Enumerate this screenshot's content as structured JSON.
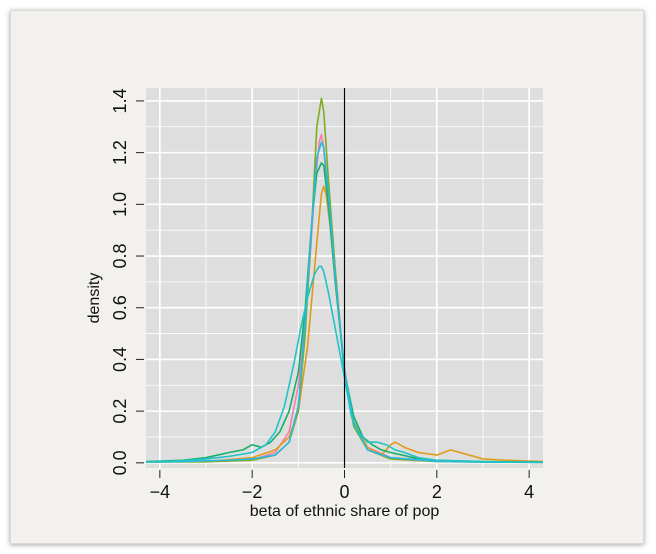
{
  "chart_data": {
    "type": "line",
    "xlabel": "beta of ethnic share of pop",
    "ylabel": "density",
    "xlim": [
      -4.3,
      4.3
    ],
    "ylim": [
      -0.02,
      1.45
    ],
    "xticks": [
      -4,
      -2,
      0,
      2,
      4
    ],
    "xtick_labels": [
      "−4",
      "−2",
      "0",
      "2",
      "4"
    ],
    "yticks": [
      0.0,
      0.2,
      0.4,
      0.6,
      0.8,
      1.0,
      1.2,
      1.4
    ],
    "ytick_labels": [
      "0.0",
      "0.2",
      "0.4",
      "0.6",
      "0.8",
      "1.0",
      "1.2",
      "1.4"
    ],
    "grid": true,
    "panel_background": "#dedede",
    "vertical_line_at_x": 0,
    "series": [
      {
        "color": "#f77fa8",
        "x": [
          -4.3,
          -3,
          -2,
          -1.5,
          -1.2,
          -1.0,
          -0.8,
          -0.65,
          -0.55,
          -0.5,
          -0.45,
          -0.35,
          -0.2,
          0,
          0.2,
          0.5,
          1,
          2,
          3,
          4.3
        ],
        "y": [
          0.005,
          0.005,
          0.012,
          0.04,
          0.12,
          0.3,
          0.65,
          1.05,
          1.24,
          1.27,
          1.22,
          1.0,
          0.7,
          0.36,
          0.16,
          0.06,
          0.02,
          0.008,
          0.004,
          0.002
        ]
      },
      {
        "color": "#e09b1a",
        "x": [
          -4.3,
          -3,
          -2,
          -1.5,
          -1.2,
          -1.0,
          -0.8,
          -0.6,
          -0.5,
          -0.45,
          -0.4,
          -0.3,
          -0.2,
          0,
          0.2,
          0.5,
          0.8,
          1.0,
          1.1,
          1.3,
          1.6,
          2.0,
          2.3,
          2.7,
          3,
          3.5,
          4.3
        ],
        "y": [
          0.004,
          0.005,
          0.02,
          0.05,
          0.1,
          0.2,
          0.45,
          0.85,
          1.04,
          1.07,
          1.04,
          0.9,
          0.7,
          0.36,
          0.16,
          0.06,
          0.03,
          0.07,
          0.08,
          0.06,
          0.04,
          0.03,
          0.05,
          0.03,
          0.015,
          0.01,
          0.005
        ]
      },
      {
        "color": "#7fad1f",
        "x": [
          -4.3,
          -3,
          -2,
          -1.5,
          -1.2,
          -1.0,
          -0.85,
          -0.7,
          -0.6,
          -0.5,
          -0.45,
          -0.35,
          -0.2,
          0,
          0.2,
          0.5,
          1,
          2,
          3,
          4.3
        ],
        "y": [
          0.003,
          0.004,
          0.01,
          0.03,
          0.08,
          0.2,
          0.5,
          0.95,
          1.3,
          1.41,
          1.36,
          1.1,
          0.75,
          0.34,
          0.14,
          0.05,
          0.015,
          0.005,
          0.003,
          0.002
        ]
      },
      {
        "color": "#16b06a",
        "x": [
          -4.3,
          -3.5,
          -3,
          -2.5,
          -2.2,
          -2,
          -1.8,
          -1.6,
          -1.4,
          -1.2,
          -1.0,
          -0.85,
          -0.7,
          -0.6,
          -0.5,
          -0.45,
          -0.35,
          -0.2,
          0,
          0.2,
          0.4,
          0.6,
          0.8,
          1,
          1.5,
          2,
          3,
          4.3
        ],
        "y": [
          0.005,
          0.01,
          0.02,
          0.04,
          0.05,
          0.07,
          0.06,
          0.08,
          0.12,
          0.2,
          0.35,
          0.6,
          0.95,
          1.12,
          1.16,
          1.15,
          1.0,
          0.7,
          0.35,
          0.18,
          0.1,
          0.07,
          0.05,
          0.04,
          0.02,
          0.01,
          0.005,
          0.003
        ]
      },
      {
        "color": "#2ab8e0",
        "x": [
          -4.3,
          -3.5,
          -3,
          -2.5,
          -2,
          -1.5,
          -1.2,
          -1.0,
          -0.85,
          -0.7,
          -0.6,
          -0.5,
          -0.45,
          -0.35,
          -0.2,
          0,
          0.2,
          0.5,
          1,
          2,
          3,
          4.3
        ],
        "y": [
          0.003,
          0.005,
          0.008,
          0.01,
          0.015,
          0.03,
          0.08,
          0.22,
          0.55,
          0.95,
          1.18,
          1.24,
          1.22,
          1.05,
          0.72,
          0.36,
          0.15,
          0.05,
          0.02,
          0.006,
          0.003,
          0.002
        ]
      },
      {
        "color": "#1fc4c7",
        "x": [
          -4.3,
          -3.5,
          -3,
          -2.5,
          -2,
          -1.7,
          -1.5,
          -1.3,
          -1.1,
          -0.95,
          -0.8,
          -0.65,
          -0.55,
          -0.5,
          -0.45,
          -0.35,
          -0.2,
          0,
          0.15,
          0.3,
          0.5,
          0.7,
          0.9,
          1.1,
          1.3,
          1.6,
          2,
          3,
          4.3
        ],
        "y": [
          0.004,
          0.008,
          0.015,
          0.025,
          0.04,
          0.07,
          0.12,
          0.22,
          0.38,
          0.52,
          0.64,
          0.73,
          0.76,
          0.76,
          0.74,
          0.66,
          0.52,
          0.33,
          0.18,
          0.12,
          0.08,
          0.08,
          0.07,
          0.05,
          0.04,
          0.02,
          0.01,
          0.004,
          0.002
        ]
      }
    ]
  }
}
